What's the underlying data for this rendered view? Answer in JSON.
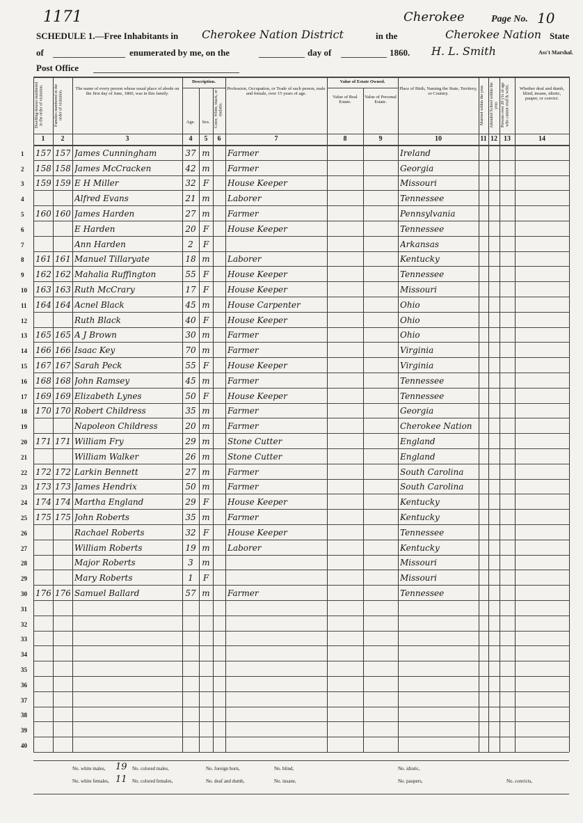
{
  "header": {
    "stamp": "1171",
    "county_note": "Cherokee",
    "page_label": "Page No.",
    "page_number": "10",
    "schedule": "SCHEDULE 1.—Free Inhabitants in",
    "district": "Cherokee Nation District",
    "in_the": "in the",
    "nation": "Cherokee Nation",
    "state_label": "State",
    "of": "of",
    "enumerated": "enumerated by me, on the",
    "day_of": "day of",
    "year": "1860.",
    "marshal": "H. L. Smith",
    "marshal_label": "Ass't Marshal.",
    "post_office": "Post Office"
  },
  "table": {
    "group_headings": {
      "description": "Description.",
      "value": "Value of Estate Owned."
    },
    "columns": [
      {
        "number": "1",
        "heading": "Dwelling-houses numbered in the order of visitation."
      },
      {
        "number": "2",
        "heading": "Families numbered in the order of visitation."
      },
      {
        "number": "3",
        "heading": "The name of every person whose usual place of abode on the first day of June, 1860, was in this family."
      },
      {
        "number": "4",
        "heading": "Age."
      },
      {
        "number": "5",
        "heading": "Sex."
      },
      {
        "number": "6",
        "heading": "Color, White, black, or mulatto."
      },
      {
        "number": "7",
        "heading": "Profession, Occupation, or Trade of each person, male and female, over 15 years of age."
      },
      {
        "number": "8",
        "heading": "Value of Real Estate."
      },
      {
        "number": "9",
        "heading": "Value of Personal Estate."
      },
      {
        "number": "10",
        "heading": "Place of Birth, Naming the State, Territory, or Country."
      },
      {
        "number": "11",
        "heading": "Married within the year."
      },
      {
        "number": "12",
        "heading": "Attended School within the year."
      },
      {
        "number": "13",
        "heading": "Persons over 20 y'rs of age who cannot read & write."
      },
      {
        "number": "14",
        "heading": "Whether deaf and dumb, blind, insane, idiotic, pauper, or convict."
      }
    ],
    "rows": [
      {
        "line": "1",
        "dwelling": "157",
        "family": "157",
        "name": "James Cunningham",
        "age": "37",
        "sex": "m",
        "occupation": "Farmer",
        "birthplace": "Ireland"
      },
      {
        "line": "2",
        "dwelling": "158",
        "family": "158",
        "name": "James McCracken",
        "age": "42",
        "sex": "m",
        "occupation": "Farmer",
        "birthplace": "Georgia"
      },
      {
        "line": "3",
        "dwelling": "159",
        "family": "159",
        "name": "E H Miller",
        "age": "32",
        "sex": "F",
        "occupation": "House Keeper",
        "birthplace": "Missouri"
      },
      {
        "line": "4",
        "name": "Alfred Evans",
        "age": "21",
        "sex": "m",
        "occupation": "Laborer",
        "birthplace": "Tennessee"
      },
      {
        "line": "5",
        "dwelling": "160",
        "family": "160",
        "name": "James Harden",
        "age": "27",
        "sex": "m",
        "occupation": "Farmer",
        "birthplace": "Pennsylvania"
      },
      {
        "line": "6",
        "name": "E Harden",
        "age": "20",
        "sex": "F",
        "occupation": "House Keeper",
        "birthplace": "Tennessee"
      },
      {
        "line": "7",
        "name": "Ann Harden",
        "age": "2",
        "sex": "F",
        "birthplace": "Arkansas"
      },
      {
        "line": "8",
        "dwelling": "161",
        "family": "161",
        "name": "Manuel Tillaryate",
        "age": "18",
        "sex": "m",
        "occupation": "Laborer",
        "birthplace": "Kentucky"
      },
      {
        "line": "9",
        "dwelling": "162",
        "family": "162",
        "name": "Mahalia Ruffington",
        "age": "55",
        "sex": "F",
        "occupation": "House Keeper",
        "birthplace": "Tennessee"
      },
      {
        "line": "10",
        "dwelling": "163",
        "family": "163",
        "name": "Ruth McCrary",
        "age": "17",
        "sex": "F",
        "occupation": "House Keeper",
        "birthplace": "Missouri"
      },
      {
        "line": "11",
        "dwelling": "164",
        "family": "164",
        "name": "Acnel Black",
        "age": "45",
        "sex": "m",
        "occupation": "House Carpenter",
        "birthplace": "Ohio"
      },
      {
        "line": "12",
        "name": "Ruth Black",
        "age": "40",
        "sex": "F",
        "occupation": "House Keeper",
        "birthplace": "Ohio"
      },
      {
        "line": "13",
        "dwelling": "165",
        "family": "165",
        "name": "A J Brown",
        "age": "30",
        "sex": "m",
        "occupation": "Farmer",
        "birthplace": "Ohio"
      },
      {
        "line": "14",
        "dwelling": "166",
        "family": "166",
        "name": "Isaac Key",
        "age": "70",
        "sex": "m",
        "occupation": "Farmer",
        "birthplace": "Virginia"
      },
      {
        "line": "15",
        "dwelling": "167",
        "family": "167",
        "name": "Sarah Peck",
        "age": "55",
        "sex": "F",
        "occupation": "House Keeper",
        "birthplace": "Virginia"
      },
      {
        "line": "16",
        "dwelling": "168",
        "family": "168",
        "name": "John Ramsey",
        "age": "45",
        "sex": "m",
        "occupation": "Farmer",
        "birthplace": "Tennessee"
      },
      {
        "line": "17",
        "dwelling": "169",
        "family": "169",
        "name": "Elizabeth Lynes",
        "age": "50",
        "sex": "F",
        "occupation": "House Keeper",
        "birthplace": "Tennessee"
      },
      {
        "line": "18",
        "dwelling": "170",
        "family": "170",
        "name": "Robert Childress",
        "age": "35",
        "sex": "m",
        "occupation": "Farmer",
        "birthplace": "Georgia"
      },
      {
        "line": "19",
        "name": "Napoleon Childress",
        "age": "20",
        "sex": "m",
        "occupation": "Farmer",
        "birthplace": "Cherokee Nation"
      },
      {
        "line": "20",
        "dwelling": "171",
        "family": "171",
        "name": "William Fry",
        "age": "29",
        "sex": "m",
        "occupation": "Stone Cutter",
        "birthplace": "England"
      },
      {
        "line": "21",
        "name": "William Walker",
        "age": "26",
        "sex": "m",
        "occupation": "Stone Cutter",
        "birthplace": "England"
      },
      {
        "line": "22",
        "dwelling": "172",
        "family": "172",
        "name": "Larkin Bennett",
        "age": "27",
        "sex": "m",
        "occupation": "Farmer",
        "birthplace": "South Carolina"
      },
      {
        "line": "23",
        "dwelling": "173",
        "family": "173",
        "name": "James Hendrix",
        "age": "50",
        "sex": "m",
        "occupation": "Farmer",
        "birthplace": "South Carolina"
      },
      {
        "line": "24",
        "dwelling": "174",
        "family": "174",
        "name": "Martha England",
        "age": "29",
        "sex": "F",
        "occupation": "House Keeper",
        "birthplace": "Kentucky"
      },
      {
        "line": "25",
        "dwelling": "175",
        "family": "175",
        "name": "John Roberts",
        "age": "35",
        "sex": "m",
        "occupation": "Farmer",
        "birthplace": "Kentucky"
      },
      {
        "line": "26",
        "name": "Rachael Roberts",
        "age": "32",
        "sex": "F",
        "occupation": "House Keeper",
        "birthplace": "Tennessee"
      },
      {
        "line": "27",
        "name": "William Roberts",
        "age": "19",
        "sex": "m",
        "occupation": "Laborer",
        "birthplace": "Kentucky"
      },
      {
        "line": "28",
        "name": "Major Roberts",
        "age": "3",
        "sex": "m",
        "birthplace": "Missouri"
      },
      {
        "line": "29",
        "name": "Mary Roberts",
        "age": "1",
        "sex": "F",
        "birthplace": "Missouri"
      },
      {
        "line": "30",
        "dwelling": "176",
        "family": "176",
        "name": "Samuel Ballard",
        "age": "57",
        "sex": "m",
        "occupation": "Farmer",
        "birthplace": "Tennessee"
      },
      {
        "line": "31"
      },
      {
        "line": "32"
      },
      {
        "line": "33"
      },
      {
        "line": "34"
      },
      {
        "line": "35"
      },
      {
        "line": "36"
      },
      {
        "line": "37"
      },
      {
        "line": "38"
      },
      {
        "line": "39"
      },
      {
        "line": "40"
      }
    ]
  },
  "footer": {
    "tallies": [
      {
        "label": "No. white males,",
        "value": "19"
      },
      {
        "label": "No. white females,",
        "value": "11"
      },
      {
        "label": "No. colored males,"
      },
      {
        "label": "No. colored females,"
      },
      {
        "label": "No. foreign born,"
      },
      {
        "label": "No. deaf and dumb,"
      },
      {
        "label": "No. blind,"
      },
      {
        "label": "No. insane,"
      },
      {
        "label": "No. idiotic,"
      },
      {
        "label": "No. paupers,"
      },
      {
        "label": "No. convicts,"
      }
    ]
  }
}
